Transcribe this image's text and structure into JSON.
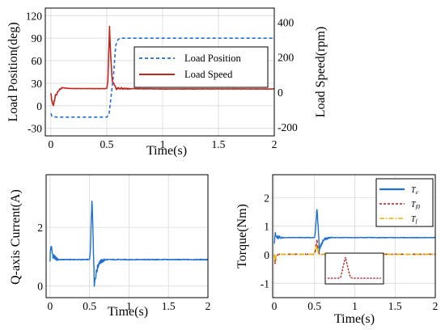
{
  "chart_data": [
    {
      "type": "line",
      "xlabel": "Time(s)",
      "ylabel": "Load Position(deg)",
      "y2label": "Load Speed(rpm)",
      "xlim": [
        -0.05,
        2
      ],
      "ylim": [
        -40,
        130
      ],
      "y2lim": [
        -250,
        480
      ],
      "xticks": [
        "0",
        "0.5",
        "1",
        "1.5",
        "2"
      ],
      "yticks": [
        "-30",
        "0",
        "30",
        "60",
        "90",
        "120"
      ],
      "y2ticks": [
        "-200",
        "0",
        "200",
        "400"
      ],
      "grid": true,
      "legend_position": "center-right",
      "series": [
        {
          "name": "Load Position",
          "axis": "left",
          "color": "#1f6fd1",
          "style": "dashed",
          "points": [
            [
              0,
              -10
            ],
            [
              0.01,
              -14
            ],
            [
              0.05,
              -15
            ],
            [
              0.2,
              -15
            ],
            [
              0.4,
              -15
            ],
            [
              0.5,
              -15
            ],
            [
              0.52,
              -12
            ],
            [
              0.56,
              40
            ],
            [
              0.58,
              80
            ],
            [
              0.6,
              88
            ],
            [
              0.62,
              90
            ],
            [
              1.0,
              90
            ],
            [
              1.5,
              90
            ],
            [
              2.0,
              90
            ]
          ]
        },
        {
          "name": "Load Speed",
          "axis": "right",
          "color": "#c0261b",
          "style": "solid",
          "points": [
            [
              0,
              0
            ],
            [
              0.01,
              -60
            ],
            [
              0.02,
              -80
            ],
            [
              0.04,
              -20
            ],
            [
              0.07,
              12
            ],
            [
              0.1,
              25
            ],
            [
              0.15,
              22
            ],
            [
              0.2,
              20
            ],
            [
              0.3,
              20
            ],
            [
              0.45,
              20
            ],
            [
              0.5,
              20
            ],
            [
              0.51,
              60
            ],
            [
              0.525,
              370
            ],
            [
              0.535,
              200
            ],
            [
              0.55,
              60
            ],
            [
              0.58,
              22
            ],
            [
              0.65,
              20
            ],
            [
              1.0,
              18
            ],
            [
              1.5,
              18
            ],
            [
              2.0,
              18
            ]
          ]
        }
      ]
    },
    {
      "type": "line",
      "xlabel": "Time(s)",
      "ylabel": "Q-axis Current(A)",
      "xlim": [
        -0.05,
        2
      ],
      "ylim": [
        -0.4,
        3.8
      ],
      "xticks": [
        "0",
        "0.5",
        "1",
        "1.5",
        "2"
      ],
      "yticks": [
        "0",
        "2"
      ],
      "grid": true,
      "series": [
        {
          "color": "#1f6fd1",
          "style": "solid",
          "points": [
            [
              0,
              0.95
            ],
            [
              0.01,
              1.35
            ],
            [
              0.03,
              1.1
            ],
            [
              0.06,
              0.95
            ],
            [
              0.1,
              0.9
            ],
            [
              0.2,
              0.9
            ],
            [
              0.5,
              0.9
            ],
            [
              0.51,
              1.2
            ],
            [
              0.53,
              3.05
            ],
            [
              0.545,
              1.8
            ],
            [
              0.56,
              0.1
            ],
            [
              0.59,
              0.5
            ],
            [
              0.62,
              0.8
            ],
            [
              0.7,
              0.9
            ],
            [
              1.0,
              0.9
            ],
            [
              1.5,
              0.9
            ],
            [
              2.0,
              0.9
            ]
          ]
        }
      ]
    },
    {
      "type": "line",
      "xlabel": "Time(s)",
      "ylabel": "Torque(Nm)",
      "xlim": [
        -0.02,
        2
      ],
      "ylim": [
        -1.5,
        2.8
      ],
      "xticks": [
        "0",
        "0.5",
        "1",
        "1.5",
        "2"
      ],
      "yticks": [
        "-1",
        "0",
        "1",
        "2"
      ],
      "grid": true,
      "legend_position": "top-right",
      "series": [
        {
          "name": "T_e",
          "label_main": "T",
          "label_sub": "e",
          "color": "#1f6fd1",
          "style": "solid",
          "points": [
            [
              0,
              0.5
            ],
            [
              0.01,
              0.7
            ],
            [
              0.03,
              0.6
            ],
            [
              0.08,
              0.6
            ],
            [
              0.2,
              0.6
            ],
            [
              0.5,
              0.6
            ],
            [
              0.51,
              0.8
            ],
            [
              0.53,
              1.65
            ],
            [
              0.545,
              1.0
            ],
            [
              0.56,
              0.2
            ],
            [
              0.59,
              0.4
            ],
            [
              0.63,
              0.55
            ],
            [
              0.7,
              0.6
            ],
            [
              1.0,
              0.6
            ],
            [
              1.5,
              0.6
            ],
            [
              2.0,
              0.6
            ]
          ]
        },
        {
          "name": "T_f0",
          "label_main": "T",
          "label_sub": "f0",
          "color": "#b5171c",
          "style": "dashed",
          "points": [
            [
              0,
              0
            ],
            [
              0.01,
              -0.3
            ],
            [
              0.02,
              -0.1
            ],
            [
              0.05,
              0.02
            ],
            [
              0.2,
              0.02
            ],
            [
              0.5,
              0.02
            ],
            [
              0.51,
              0.15
            ],
            [
              0.53,
              0.5
            ],
            [
              0.545,
              0.15
            ],
            [
              0.56,
              0.02
            ],
            [
              1.0,
              0.02
            ],
            [
              2.0,
              0.02
            ]
          ]
        },
        {
          "name": "T_f",
          "label_main": "T",
          "label_sub": "f",
          "color": "#e8b400",
          "style": "dashdot",
          "points": [
            [
              0,
              0
            ],
            [
              0.01,
              -0.25
            ],
            [
              0.02,
              -0.05
            ],
            [
              0.05,
              0.02
            ],
            [
              0.2,
              0.02
            ],
            [
              0.5,
              0.02
            ],
            [
              0.51,
              0.1
            ],
            [
              0.53,
              0.35
            ],
            [
              0.545,
              0.1
            ],
            [
              0.56,
              0.02
            ],
            [
              1.0,
              0.02
            ],
            [
              2.0,
              0.02
            ]
          ]
        }
      ]
    }
  ]
}
